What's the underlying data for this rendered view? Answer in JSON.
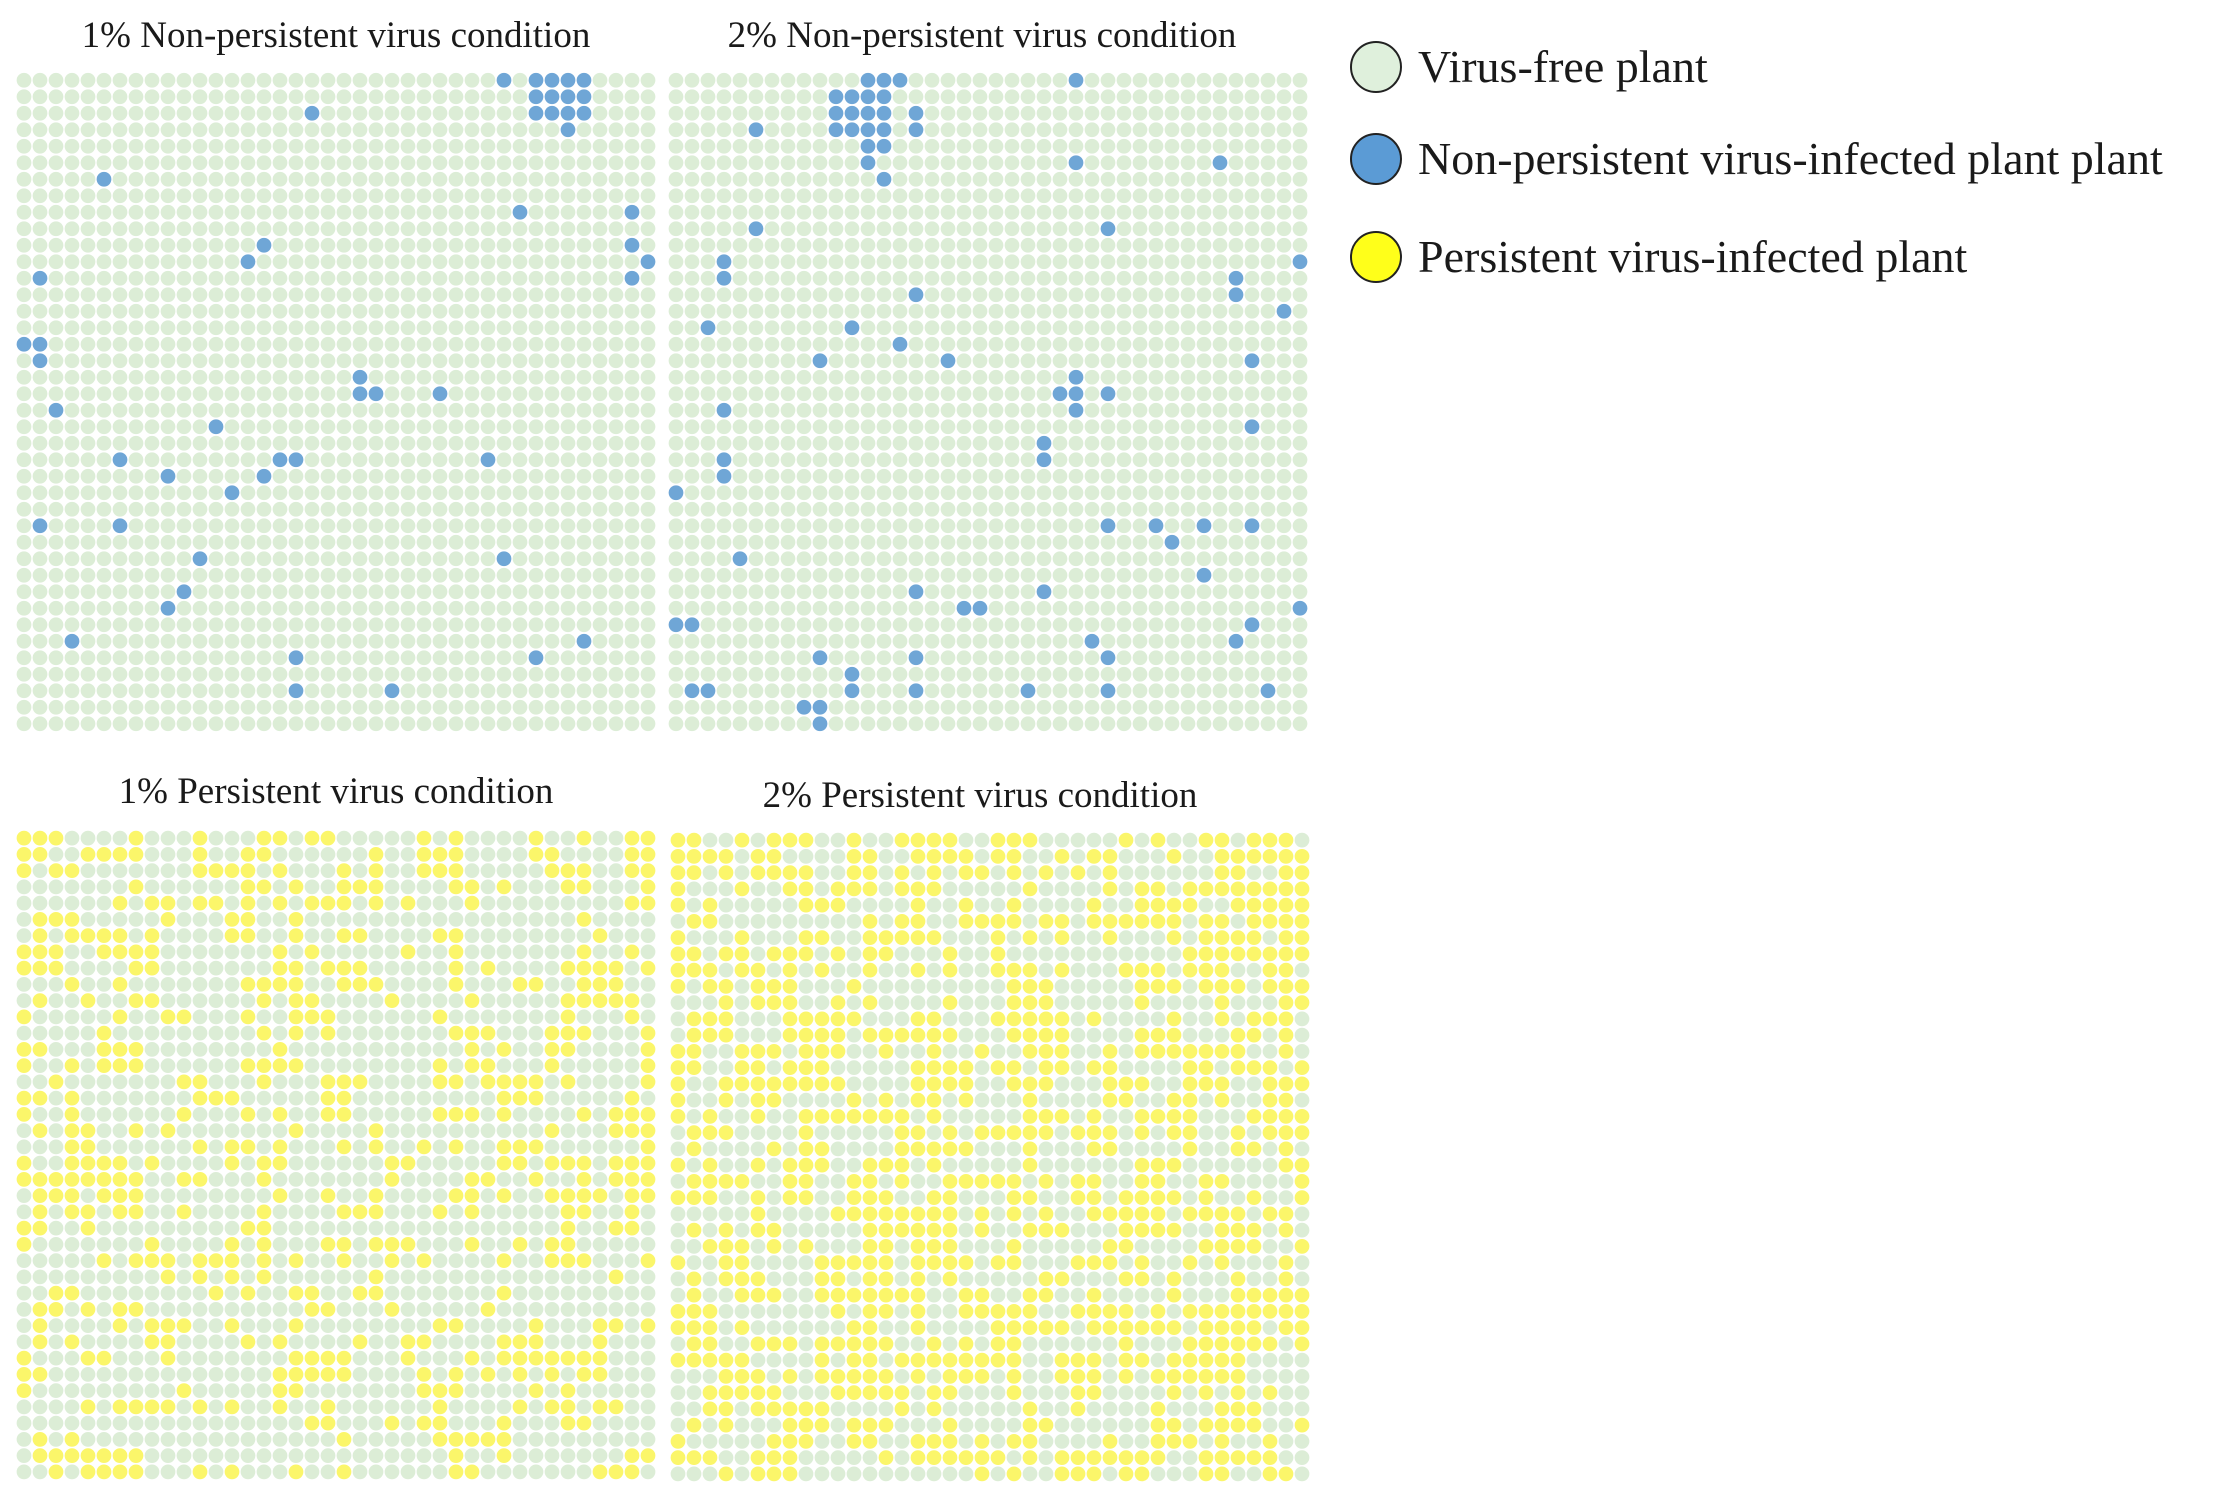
{
  "figure": {
    "panels": [
      {
        "title": "1% Non-persistent virus condition",
        "condition": "non-persistent",
        "initial_infection_percent": 1,
        "infected_cells_rowcol": [
          [
            0,
            30
          ],
          [
            0,
            32
          ],
          [
            0,
            33
          ],
          [
            0,
            34
          ],
          [
            0,
            35
          ],
          [
            1,
            32
          ],
          [
            1,
            33
          ],
          [
            1,
            34
          ],
          [
            1,
            35
          ],
          [
            2,
            18
          ],
          [
            2,
            32
          ],
          [
            2,
            33
          ],
          [
            2,
            34
          ],
          [
            2,
            35
          ],
          [
            3,
            34
          ],
          [
            6,
            5
          ],
          [
            8,
            31
          ],
          [
            8,
            38
          ],
          [
            10,
            15
          ],
          [
            10,
            38
          ],
          [
            11,
            14
          ],
          [
            11,
            39
          ],
          [
            12,
            1
          ],
          [
            12,
            38
          ],
          [
            16,
            0
          ],
          [
            16,
            1
          ],
          [
            17,
            1
          ],
          [
            18,
            21
          ],
          [
            19,
            21
          ],
          [
            19,
            22
          ],
          [
            19,
            26
          ],
          [
            20,
            2
          ],
          [
            21,
            12
          ],
          [
            23,
            6
          ],
          [
            23,
            16
          ],
          [
            23,
            17
          ],
          [
            23,
            29
          ],
          [
            24,
            9
          ],
          [
            24,
            15
          ],
          [
            25,
            13
          ],
          [
            27,
            1
          ],
          [
            27,
            6
          ],
          [
            29,
            11
          ],
          [
            29,
            30
          ],
          [
            31,
            10
          ],
          [
            32,
            9
          ],
          [
            34,
            3
          ],
          [
            34,
            35
          ],
          [
            35,
            17
          ],
          [
            35,
            32
          ],
          [
            37,
            17
          ],
          [
            37,
            23
          ]
        ]
      },
      {
        "title": "2% Non-persistent virus condition",
        "condition": "non-persistent",
        "initial_infection_percent": 2,
        "infected_cells_rowcol": [
          [
            0,
            12
          ],
          [
            0,
            13
          ],
          [
            0,
            14
          ],
          [
            0,
            25
          ],
          [
            1,
            10
          ],
          [
            1,
            11
          ],
          [
            1,
            12
          ],
          [
            1,
            13
          ],
          [
            2,
            10
          ],
          [
            2,
            11
          ],
          [
            2,
            12
          ],
          [
            2,
            13
          ],
          [
            2,
            15
          ],
          [
            3,
            5
          ],
          [
            3,
            10
          ],
          [
            3,
            11
          ],
          [
            3,
            12
          ],
          [
            3,
            13
          ],
          [
            3,
            15
          ],
          [
            4,
            12
          ],
          [
            4,
            13
          ],
          [
            5,
            12
          ],
          [
            5,
            25
          ],
          [
            5,
            34
          ],
          [
            6,
            13
          ],
          [
            9,
            5
          ],
          [
            9,
            27
          ],
          [
            11,
            3
          ],
          [
            11,
            39
          ],
          [
            12,
            3
          ],
          [
            12,
            35
          ],
          [
            13,
            15
          ],
          [
            13,
            35
          ],
          [
            14,
            38
          ],
          [
            15,
            2
          ],
          [
            15,
            11
          ],
          [
            16,
            14
          ],
          [
            17,
            9
          ],
          [
            17,
            17
          ],
          [
            17,
            36
          ],
          [
            18,
            25
          ],
          [
            19,
            24
          ],
          [
            19,
            25
          ],
          [
            19,
            27
          ],
          [
            20,
            3
          ],
          [
            20,
            25
          ],
          [
            21,
            36
          ],
          [
            22,
            23
          ],
          [
            23,
            3
          ],
          [
            23,
            23
          ],
          [
            24,
            3
          ],
          [
            25,
            0
          ],
          [
            27,
            27
          ],
          [
            27,
            30
          ],
          [
            27,
            33
          ],
          [
            27,
            36
          ],
          [
            28,
            31
          ],
          [
            29,
            4
          ],
          [
            30,
            33
          ],
          [
            31,
            15
          ],
          [
            31,
            23
          ],
          [
            32,
            18
          ],
          [
            32,
            19
          ],
          [
            32,
            39
          ],
          [
            33,
            0
          ],
          [
            33,
            1
          ],
          [
            33,
            36
          ],
          [
            34,
            26
          ],
          [
            34,
            35
          ],
          [
            35,
            9
          ],
          [
            35,
            15
          ],
          [
            35,
            27
          ],
          [
            36,
            11
          ],
          [
            37,
            1
          ],
          [
            37,
            2
          ],
          [
            37,
            11
          ],
          [
            37,
            15
          ],
          [
            37,
            22
          ],
          [
            37,
            27
          ],
          [
            37,
            37
          ],
          [
            38,
            8
          ],
          [
            38,
            9
          ],
          [
            39,
            9
          ]
        ]
      },
      {
        "title": "1% Persistent virus condition",
        "condition": "persistent",
        "initial_infection_percent": 1,
        "infection_density": 0.33
      },
      {
        "title": "2% Persistent virus condition",
        "condition": "persistent",
        "initial_infection_percent": 2,
        "infection_density": 0.52
      }
    ],
    "legend": [
      {
        "label": "Virus-free plant",
        "color": "#dff0dc"
      },
      {
        "label": "Non-persistent virus-infected plant plant",
        "color": "#5b9bd5"
      },
      {
        "label": "Persistent virus-infected plant",
        "color": "#ffff1a"
      }
    ],
    "colors": {
      "healthy": "#dcedd6",
      "non_persistent": "#6fa6d6",
      "persistent": "#fbf66a"
    }
  }
}
